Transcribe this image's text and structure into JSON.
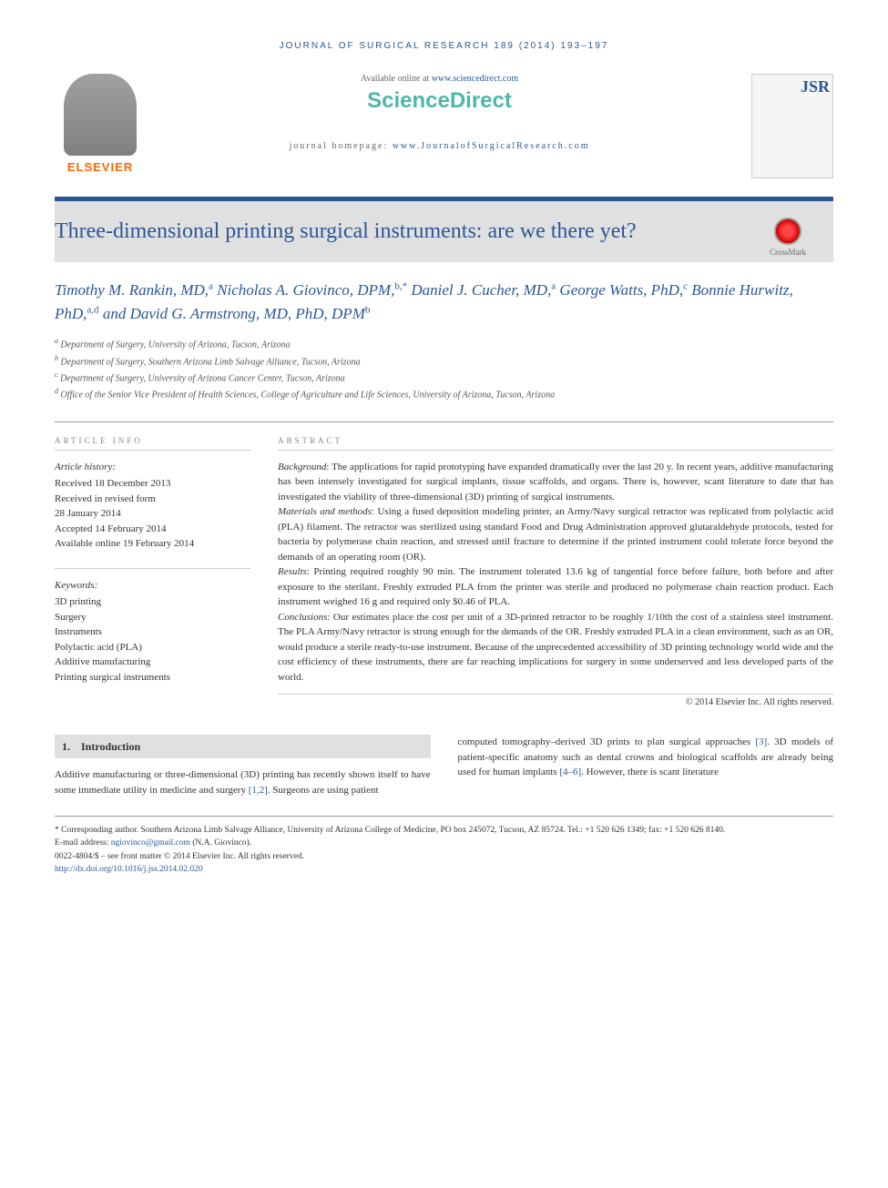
{
  "running_head": "JOURNAL OF SURGICAL RESEARCH 189 (2014) 193–197",
  "header": {
    "available": "Available online at ",
    "available_link": "www.sciencedirect.com",
    "sciencedirect": "ScienceDirect",
    "homepage_label": "journal homepage: ",
    "homepage_link": "www.JournalofSurgicalResearch.com",
    "elsevier": "ELSEVIER",
    "cover_journal": "JSR"
  },
  "title": "Three-dimensional printing surgical instruments: are we there yet?",
  "crossmark": "CrossMark",
  "authors_html": "Timothy M. Rankin, MD,<sup>a</sup> Nicholas A. Giovinco, DPM,<sup>b,*</sup> Daniel J. Cucher, MD,<sup>a</sup> George Watts, PhD,<sup>c</sup> Bonnie Hurwitz, PhD,<sup>a,d</sup> and David G. Armstrong, MD, PhD, DPM<sup>b</sup>",
  "affiliations": [
    "<sup>a</sup> Department of Surgery, University of Arizona, Tucson, Arizona",
    "<sup>b</sup> Department of Surgery, Southern Arizona Limb Salvage Alliance, Tucson, Arizona",
    "<sup>c</sup> Department of Surgery, University of Arizona Cancer Center, Tucson, Arizona",
    "<sup>d</sup> Office of the Senior Vice President of Health Sciences, College of Agriculture and Life Sciences, University of Arizona, Tucson, Arizona"
  ],
  "article_info": {
    "label": "ARTICLE INFO",
    "history_head": "Article history:",
    "history": [
      "Received 18 December 2013",
      "Received in revised form",
      "28 January 2014",
      "Accepted 14 February 2014",
      "Available online 19 February 2014"
    ],
    "keywords_head": "Keywords:",
    "keywords": [
      "3D printing",
      "Surgery",
      "Instruments",
      "Polylactic acid (PLA)",
      "Additive manufacturing",
      "Printing surgical instruments"
    ]
  },
  "abstract": {
    "label": "ABSTRACT",
    "sections": [
      {
        "h": "Background",
        "t": ": The applications for rapid prototyping have expanded dramatically over the last 20 y. In recent years, additive manufacturing has been intensely investigated for surgical implants, tissue scaffolds, and organs. There is, however, scant literature to date that has investigated the viability of three-dimensional (3D) printing of surgical instruments."
      },
      {
        "h": "Materials and methods",
        "t": ": Using a fused deposition modeling printer, an Army/Navy surgical retractor was replicated from polylactic acid (PLA) filament. The retractor was sterilized using standard Food and Drug Administration approved glutaraldehyde protocols, tested for bacteria by polymerase chain reaction, and stressed until fracture to determine if the printed instrument could tolerate force beyond the demands of an operating room (OR)."
      },
      {
        "h": "Results",
        "t": ": Printing required roughly 90 min. The instrument tolerated 13.6 kg of tangential force before failure, both before and after exposure to the sterilant. Freshly extruded PLA from the printer was sterile and produced no polymerase chain reaction product. Each instrument weighed 16 g and required only $0.46 of PLA."
      },
      {
        "h": "Conclusions",
        "t": ": Our estimates place the cost per unit of a 3D-printed retractor to be roughly 1/10th the cost of a stainless steel instrument. The PLA Army/Navy retractor is strong enough for the demands of the OR. Freshly extruded PLA in a clean environment, such as an OR, would produce a sterile ready-to-use instrument. Because of the unprecedented accessibility of 3D printing technology world wide and the cost efficiency of these instruments, there are far reaching implications for surgery in some underserved and less developed parts of the world."
      }
    ],
    "copyright": "© 2014 Elsevier Inc. All rights reserved."
  },
  "intro": {
    "heading_num": "1.",
    "heading": "Introduction",
    "col1": "Additive manufacturing or three-dimensional (3D) printing has recently shown itself to have some immediate utility in medicine and surgery <span class=\"ref-link\">[1,2]</span>. Surgeons are using patient",
    "col2": "computed tomography–derived 3D prints to plan surgical approaches <span class=\"ref-link\">[3]</span>. 3D models of patient-specific anatomy such as dental crowns and biological scaffolds are already being used for human implants <span class=\"ref-link\">[4–6]</span>. However, there is scant literature"
  },
  "footer": {
    "corresponding": "* Corresponding author. Southern Arizona Limb Salvage Alliance, University of Arizona College of Medicine, PO box 245072, Tucson, AZ 85724. Tel.: +1 520 626 1349; fax: +1 520 626 8140.",
    "email_label": "E-mail address: ",
    "email": "ngiovinco@gmail.com",
    "email_suffix": " (N.A. Giovinco).",
    "issn": "0022-4804/$ – see front matter © 2014 Elsevier Inc. All rights reserved.",
    "doi": "http://dx.doi.org/10.1016/j.jss.2014.02.020"
  }
}
